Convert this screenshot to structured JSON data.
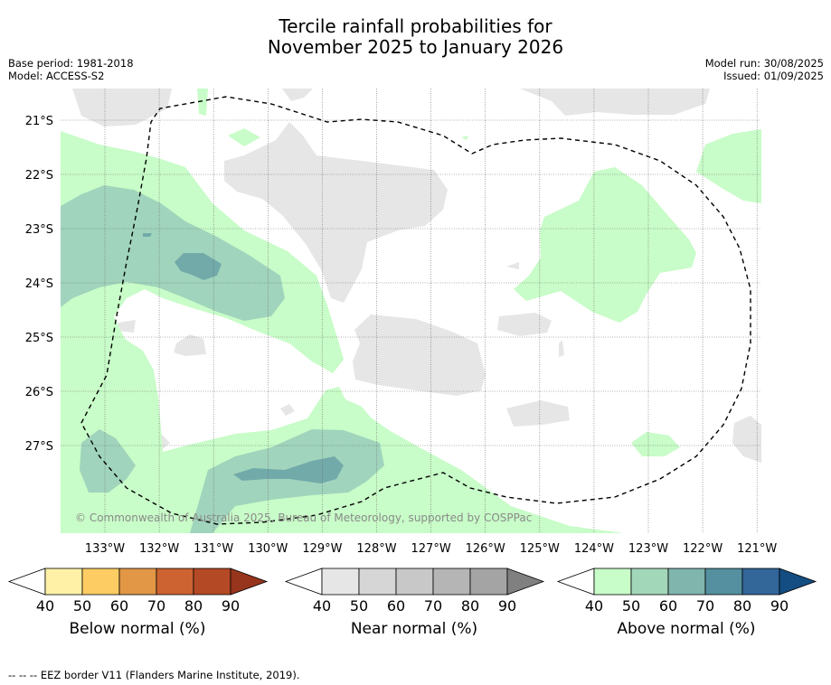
{
  "title": {
    "line1": "Tercile rainfall probabilities for",
    "line2": "November 2025 to January 2026"
  },
  "meta": {
    "base_period": "Base period: 1981-2018",
    "model": "Model: ACCESS-S2",
    "model_run": "Model run: 30/08/2025",
    "issued": "Issued: 01/09/2025"
  },
  "map": {
    "lat_labels": [
      "21°S",
      "22°S",
      "23°S",
      "24°S",
      "25°S",
      "26°S",
      "27°S"
    ],
    "lon_labels": [
      "133°W",
      "132°W",
      "131°W",
      "130°W",
      "129°W",
      "128°W",
      "127°W",
      "126°W",
      "125°W",
      "124°W",
      "123°W",
      "122°W",
      "121°W"
    ],
    "copyright": "© Commonwealth of Australia 2025, Bureau of Meteorology, supported by COSPPac",
    "colors": {
      "near_light": "#e6e6e6",
      "above_40": "#c8fcc8",
      "above_50": "#a0d4bc",
      "above_60": "#72aaaa",
      "eez_line": "#000000"
    }
  },
  "colorbars": [
    {
      "name": "below",
      "label": "Below normal (%)",
      "ticks": [
        "40",
        "50",
        "60",
        "70",
        "80",
        "90"
      ],
      "colors": [
        "#ffffff",
        "#fff2a6",
        "#fdcc63",
        "#e19746",
        "#cc6331",
        "#b34a25",
        "#96341c"
      ]
    },
    {
      "name": "near",
      "label": "Near normal (%)",
      "ticks": [
        "40",
        "50",
        "60",
        "70",
        "80",
        "90"
      ],
      "colors": [
        "#ffffff",
        "#e6e6e6",
        "#d6d6d6",
        "#c8c8c8",
        "#b5b5b5",
        "#a4a4a4",
        "#808080"
      ]
    },
    {
      "name": "above",
      "label": "Above normal (%)",
      "ticks": [
        "40",
        "50",
        "60",
        "70",
        "80",
        "90"
      ],
      "colors": [
        "#ffffff",
        "#c8fcc8",
        "#a3d7b9",
        "#7fb5ad",
        "#54909f",
        "#336699",
        "#144d82"
      ]
    }
  ],
  "footer": "--  --  -- EEZ border V11 (Flanders Marine Institute, 2019)."
}
